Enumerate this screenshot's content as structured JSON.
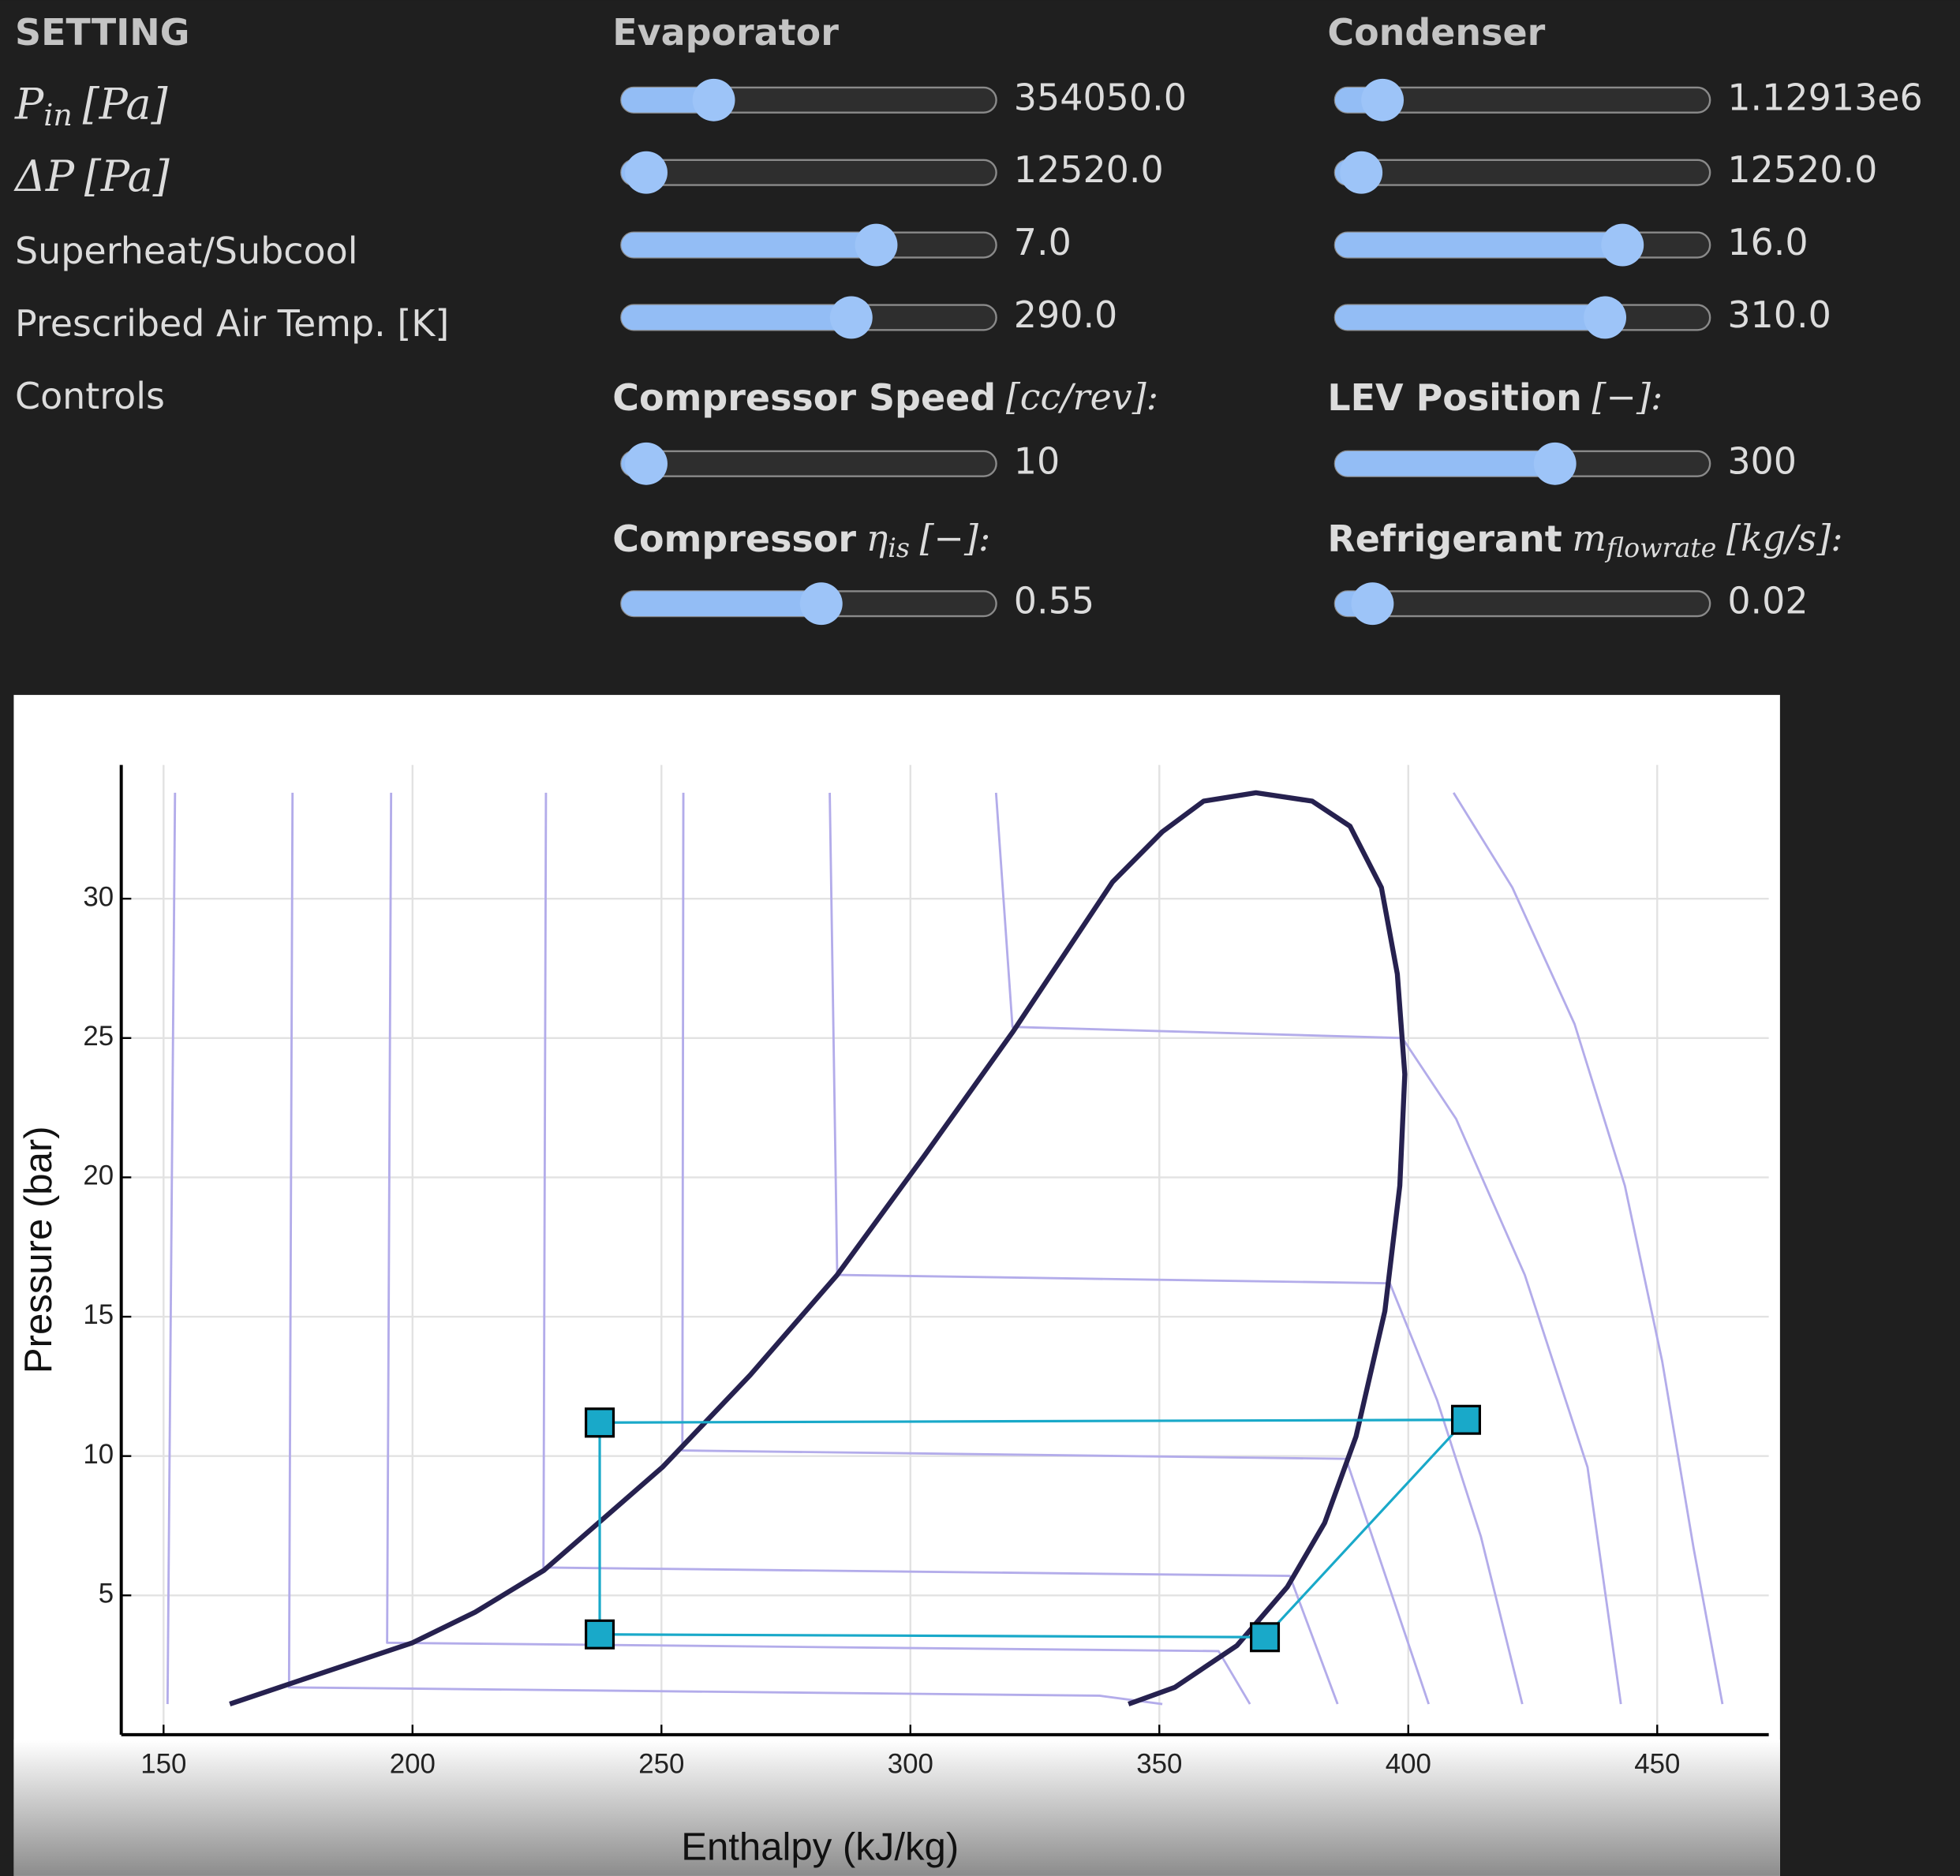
{
  "settings": {
    "title": "SETTING",
    "columns": [
      "Evaporator",
      "Condenser"
    ],
    "rows": [
      {
        "symbol": "P",
        "sub": "in",
        "unit": "[Pa]",
        "values": [
          "354050.0",
          "1.12913e6"
        ]
      },
      {
        "symbol": "ΔP",
        "unit": "[Pa]",
        "values": [
          "12520.0",
          "12520.0"
        ]
      },
      {
        "label": "Superheat/Subcool",
        "values": [
          "7.0",
          "16.0"
        ]
      },
      {
        "label": "Prescribed Air Temp. [K]",
        "values": [
          "290.0",
          "310.0"
        ]
      }
    ],
    "controls": {
      "label": "Controls",
      "items": [
        {
          "name": "Compressor Speed",
          "unit": "[cc/rev]:",
          "value": "10"
        },
        {
          "name": "LEV Position",
          "unit": "[−]:",
          "value": "300"
        },
        {
          "name": "Compressor",
          "symbol": "η",
          "sub": "is",
          "unit": "[−]:",
          "value": "0.55"
        },
        {
          "name": "Refrigerant",
          "symbol": "m",
          "sub": "flowrate",
          "unit": "[kg/s]:",
          "value": "0.02"
        }
      ]
    }
  },
  "chart_data": {
    "type": "line",
    "x_label": "Enthalpy (kJ/kg)",
    "y_label": "Pressure (bar)",
    "xlim": [
      141.5,
      472.4
    ],
    "ylim": [
      0,
      34.8
    ],
    "xticks": [
      150,
      200,
      250,
      300,
      350,
      400,
      450
    ],
    "yticks": [
      5,
      10,
      15,
      20,
      25,
      30
    ],
    "grid": true,
    "series": [
      {
        "color": "#b3acea",
        "x": [
          150.8,
          152.3
        ],
        "values": [
          1.1,
          33.8
        ]
      },
      {
        "color": "#b3acea",
        "x": [
          175.9,
          175.2,
          338.0,
          350.6
        ],
        "values": [
          33.8,
          1.7,
          1.4,
          1.1
        ]
      },
      {
        "color": "#b3acea",
        "x": [
          195.7,
          194.9,
          361.9,
          368.2
        ],
        "values": [
          33.8,
          3.3,
          3.0,
          1.1
        ]
      },
      {
        "color": "#b3acea",
        "x": [
          226.8,
          226.3,
          376.2,
          385.8
        ],
        "values": [
          33.8,
          6.0,
          5.7,
          1.1
        ]
      },
      {
        "color": "#b3acea",
        "x": [
          254.4,
          254.2,
          387.5,
          404.1
        ],
        "values": [
          33.8,
          10.2,
          9.9,
          1.1
        ]
      },
      {
        "color": "#b3acea",
        "x": [
          283.8,
          285.3,
          396.3,
          405.8,
          414.6,
          422.9
        ],
        "values": [
          33.8,
          16.5,
          16.2,
          12.0,
          7.1,
          1.1
        ]
      },
      {
        "color": "#b3acea",
        "x": [
          317.2,
          320.5,
          398.8,
          409.6,
          423.4,
          436.0,
          442.7
        ],
        "values": [
          33.8,
          25.4,
          25.0,
          22.1,
          16.5,
          9.6,
          1.1
        ]
      },
      {
        "color": "#b3acea",
        "x": [
          409.1,
          420.9,
          433.4,
          443.5,
          451.0,
          457.3,
          463.1
        ],
        "values": [
          33.8,
          30.4,
          25.5,
          19.7,
          13.4,
          6.7,
          1.1
        ]
      },
      {
        "color": "#26214f",
        "x": [
          163.3,
          179.9,
          200.0,
          212.6,
          226.4,
          250.2,
          267.8,
          285.3,
          302.9,
          320.5,
          340.6,
          350.6,
          358.9,
          369.4,
          380.7,
          388.3,
          394.6,
          397.8,
          399.3,
          398.3,
          395.3,
          389.5,
          383.2,
          375.7,
          365.6,
          353.1,
          343.8
        ],
        "values": [
          1.1,
          2.1,
          3.3,
          4.4,
          5.9,
          9.6,
          12.9,
          16.5,
          20.8,
          25.2,
          30.6,
          32.4,
          33.5,
          33.8,
          33.5,
          32.6,
          30.4,
          27.3,
          23.7,
          19.7,
          15.2,
          10.7,
          7.6,
          5.3,
          3.2,
          1.7,
          1.1
        ]
      },
      {
        "color": "#19a9c9",
        "markers": true,
        "x": [
          237.6,
          411.6,
          371.2,
          237.6,
          237.6
        ],
        "values": [
          11.2,
          11.3,
          3.5,
          3.6,
          11.2
        ]
      }
    ]
  }
}
